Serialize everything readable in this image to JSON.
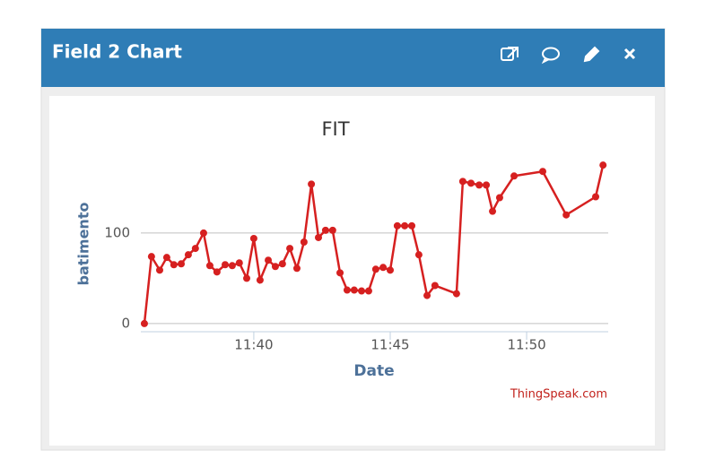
{
  "header": {
    "title": "Field 2 Chart"
  },
  "chart_data": {
    "type": "line",
    "title": "FIT",
    "x_label": "Date",
    "y_label": "batimento",
    "credit": "ThingSpeak.com",
    "color": "#d62020",
    "grid": true,
    "x": [
      695.99,
      696.25,
      696.55,
      696.81,
      697.07,
      697.34,
      697.6,
      697.86,
      698.16,
      698.39,
      698.65,
      698.95,
      699.21,
      699.47,
      699.74,
      700,
      700.23,
      700.53,
      700.79,
      701.05,
      701.32,
      701.58,
      701.84,
      702.11,
      702.37,
      702.63,
      702.89,
      703.16,
      703.42,
      703.68,
      703.95,
      704.21,
      704.47,
      704.74,
      705,
      705.26,
      705.53,
      705.79,
      706.05,
      706.35,
      706.64,
      707.43,
      707.66,
      707.96,
      708.26,
      708.52,
      708.75,
      709.01,
      709.54,
      710.59,
      711.45,
      712.53,
      712.8
    ],
    "values": [
      0,
      74,
      59,
      73,
      65,
      66,
      76,
      83,
      100,
      64,
      57,
      65,
      64,
      67,
      50,
      94,
      48,
      70,
      63,
      66,
      83,
      61,
      90,
      154,
      95,
      103,
      103,
      56,
      37,
      37,
      36,
      36,
      60,
      62,
      59,
      108,
      108,
      108,
      76,
      31,
      42,
      33,
      157,
      155,
      153,
      153,
      124,
      139,
      163,
      168,
      120,
      140,
      175
    ],
    "xlim": [
      695.86,
      712.99
    ],
    "xticks": [
      {
        "value": 700,
        "label": "11:40"
      },
      {
        "value": 705,
        "label": "11:45"
      },
      {
        "value": 710,
        "label": "11:50"
      }
    ],
    "ylim": [
      -9,
      190
    ],
    "yticks": [
      0,
      100
    ]
  }
}
